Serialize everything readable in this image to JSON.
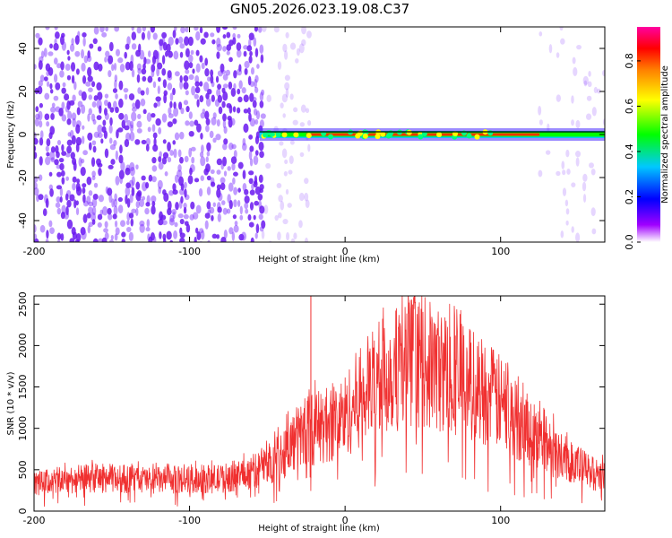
{
  "figure_title": "GN05.2026.023.19.08.C37",
  "colors": {
    "background": "#ffffff",
    "spectrogram_noise": "#7b2bff",
    "spectrogram_line": "#000000",
    "snr_trace": "#f03030",
    "frame": "#000000"
  },
  "chart_data": [
    {
      "type": "heatmap",
      "title": "",
      "xlabel": "Height of straight line (km)",
      "ylabel": "Frequency (Hz)",
      "xlim": [
        -200,
        167
      ],
      "ylim": [
        -50,
        50
      ],
      "x_ticks": [
        -200,
        -100,
        0,
        100
      ],
      "y_ticks": [
        -40,
        -20,
        0,
        20,
        40
      ],
      "colorbar": {
        "label": "Normalized spectral amplitude",
        "range": [
          0.0,
          0.95
        ],
        "ticks": [
          0.0,
          0.2,
          0.4,
          0.6,
          0.8
        ],
        "tick_labels": [
          "0.0",
          "0.2",
          "0.4",
          "0.6",
          "0.8"
        ],
        "colormap": [
          "#ffffff",
          "#a000ff",
          "#0000ff",
          "#00c8ff",
          "#00ff00",
          "#ffff00",
          "#ff8000",
          "#ff0000",
          "#ff00a0"
        ]
      },
      "noise_regions": [
        {
          "x_range": [
            -200,
            -53
          ],
          "level": "dense"
        },
        {
          "x_range": [
            -53,
            -25
          ],
          "level": "sparse"
        },
        {
          "x_range": [
            125,
            167
          ],
          "level": "faint"
        }
      ],
      "signal_line": {
        "frequency_hz": 0,
        "x_range": [
          -55,
          167
        ],
        "peak_amplitude": 0.95
      }
    },
    {
      "type": "line",
      "title": "",
      "xlabel": "Height of straight line (km)",
      "ylabel": "SNR (10 * v/v)",
      "xlim": [
        -200,
        167
      ],
      "ylim": [
        0,
        2600
      ],
      "x_ticks": [
        -200,
        -100,
        0,
        100
      ],
      "y_ticks": [
        0,
        500,
        1000,
        1500,
        2000,
        2500
      ],
      "series": [
        {
          "name": "SNR",
          "x": [
            -200,
            -180,
            -160,
            -140,
            -120,
            -100,
            -80,
            -60,
            -50,
            -40,
            -30,
            -20,
            -10,
            0,
            10,
            20,
            30,
            40,
            50,
            60,
            70,
            80,
            90,
            100,
            110,
            120,
            130,
            140,
            150,
            160,
            167
          ],
          "values": [
            330,
            380,
            400,
            390,
            370,
            380,
            390,
            470,
            560,
            700,
            900,
            1000,
            1050,
            1150,
            1400,
            1550,
            1700,
            1800,
            1800,
            1700,
            1650,
            1550,
            1450,
            1300,
            1100,
            950,
            800,
            650,
            550,
            450,
            420
          ],
          "spike_max": 2600,
          "spike_x": -22
        }
      ]
    }
  ]
}
